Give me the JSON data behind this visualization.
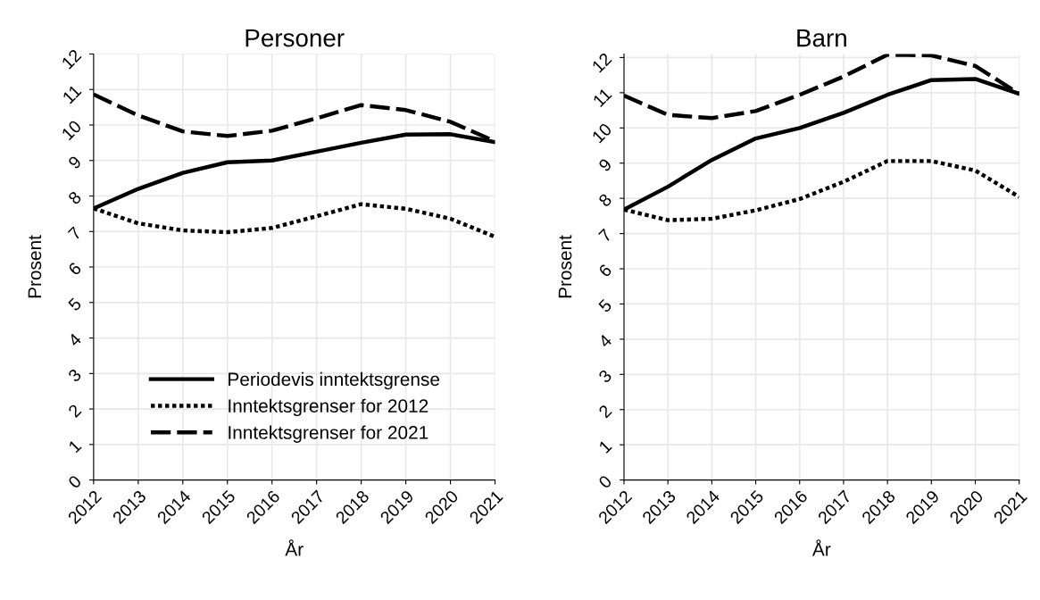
{
  "chart_data": [
    {
      "type": "line",
      "title": "Personer",
      "xlabel": "År",
      "ylabel": "Prosent",
      "x": [
        2012,
        2013,
        2014,
        2015,
        2016,
        2017,
        2018,
        2019,
        2020,
        2021
      ],
      "xlim": [
        2012,
        2021
      ],
      "xticks": [
        2012,
        2013,
        2014,
        2015,
        2016,
        2017,
        2018,
        2019,
        2020,
        2021
      ],
      "ylim": [
        0,
        12
      ],
      "yticks": [
        0,
        1,
        2,
        3,
        4,
        5,
        6,
        7,
        8,
        9,
        10,
        11,
        12
      ],
      "grid": true,
      "legend": "bottom left",
      "marker": "none",
      "series": [
        {
          "name": "Periodevis inntektsgrense",
          "color": "#000000",
          "line_style": "solid",
          "values": [
            7.65,
            8.2,
            8.65,
            8.95,
            9.0,
            9.25,
            9.5,
            9.73,
            9.74,
            9.52
          ]
        },
        {
          "name": "Inntektsgrenser for 2012",
          "color": "#000000",
          "line_style": "dotted",
          "values": [
            7.65,
            7.23,
            7.03,
            6.98,
            7.1,
            7.43,
            7.77,
            7.64,
            7.36,
            6.85
          ]
        },
        {
          "name": "Inntektsgrenser for 2021",
          "color": "#000000",
          "line_style": "dashed",
          "values": [
            10.86,
            10.27,
            9.82,
            9.69,
            9.84,
            10.19,
            10.56,
            10.42,
            10.09,
            9.54
          ]
        }
      ]
    },
    {
      "type": "line",
      "title": "Barn",
      "xlabel": "År",
      "ylabel": "Prosent",
      "x": [
        2012,
        2013,
        2014,
        2015,
        2016,
        2017,
        2018,
        2019,
        2020,
        2021
      ],
      "xlim": [
        2012,
        2021
      ],
      "xticks": [
        2012,
        2013,
        2014,
        2015,
        2016,
        2017,
        2018,
        2019,
        2020,
        2021
      ],
      "ylim": [
        0,
        12.1
      ],
      "yticks": [
        0,
        1,
        2,
        3,
        4,
        5,
        6,
        7,
        8,
        9,
        10,
        11,
        12
      ],
      "grid": true,
      "marker": "none",
      "series": [
        {
          "color": "#000000",
          "line_style": "solid",
          "values": [
            7.68,
            8.33,
            9.09,
            9.7,
            10.0,
            10.43,
            10.94,
            11.36,
            11.39,
            10.97
          ]
        },
        {
          "color": "#000000",
          "line_style": "dotted",
          "values": [
            7.68,
            7.38,
            7.42,
            7.66,
            7.98,
            8.47,
            9.06,
            9.06,
            8.79,
            8.04
          ]
        },
        {
          "color": "#000000",
          "line_style": "dashed",
          "values": [
            10.92,
            10.37,
            10.28,
            10.48,
            10.94,
            11.46,
            12.08,
            12.06,
            11.76,
            10.97
          ]
        }
      ]
    }
  ]
}
